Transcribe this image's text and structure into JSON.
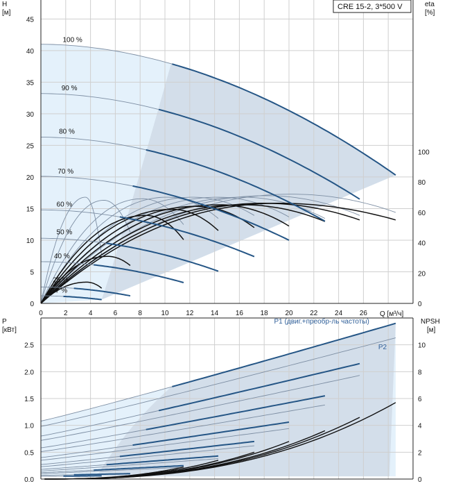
{
  "legend_box": {
    "text": "CRE 15-2, 3*500 V"
  },
  "colors": {
    "grid": "#cfcfcf",
    "frame": "#222222",
    "area_light": "#e4f1fb",
    "area_dark": "#d3deea",
    "curve_dark": "#245585",
    "curve_thin": "#7d8ea3",
    "black": "#111111",
    "label_blue": "#2f5f99"
  },
  "chart_data": [
    {
      "type": "line",
      "name": "H-Q",
      "ylabel_top": "H",
      "ylabel_unit": "[м]",
      "y2label_top": "eta",
      "y2label_unit": "[%]",
      "xlabel": "Q [м³/ч]",
      "xlim": [
        0,
        30
      ],
      "ylim": [
        0,
        48
      ],
      "y2lim": [
        0,
        200
      ],
      "x_ticks": [
        0,
        2,
        4,
        6,
        8,
        10,
        12,
        14,
        16,
        18,
        20,
        22,
        24,
        26
      ],
      "y_ticks": [
        0,
        5,
        10,
        15,
        20,
        25,
        30,
        35,
        40,
        45
      ],
      "y2_ticks": [
        0,
        20,
        40,
        60,
        80,
        100
      ],
      "speed_labels": [
        {
          "text": "100 %",
          "q": 1.2,
          "h": 41
        },
        {
          "text": "90 %",
          "q": 1.1,
          "h": 33.4
        },
        {
          "text": "80 %",
          "q": 0.9,
          "h": 26.5
        },
        {
          "text": "70 %",
          "q": 0.8,
          "h": 20.2
        },
        {
          "text": "60 %",
          "q": 0.7,
          "h": 15.0
        },
        {
          "text": "50 %",
          "q": 0.7,
          "h": 10.6
        },
        {
          "text": "40 %",
          "q": 0.5,
          "h": 6.8
        },
        {
          "text": "25 %",
          "q": 0.4,
          "h": 3.0
        },
        {
          "text": "17 %",
          "q": 0.3,
          "h": 1.4
        }
      ],
      "speed_curves": [
        {
          "h0": 41,
          "qmax": 28.6,
          "hend": 20.3
        },
        {
          "h0": 33.2,
          "qmax": 25.7,
          "hend": 16.5
        },
        {
          "h0": 26.3,
          "qmax": 22.9,
          "hend": 13.0
        },
        {
          "h0": 20.1,
          "qmax": 20.0,
          "hend": 10.0
        },
        {
          "h0": 14.8,
          "qmax": 17.2,
          "hend": 7.4
        },
        {
          "h0": 10.3,
          "qmax": 14.3,
          "hend": 5.1
        },
        {
          "h0": 6.6,
          "qmax": 11.5,
          "hend": 3.3
        },
        {
          "h0": 2.6,
          "qmax": 7.2,
          "hend": 1.2
        },
        {
          "h0": 1.2,
          "qmax": 4.9,
          "hend": 0.6
        }
      ],
      "eta_curves": [
        {
          "qmax": 28.6,
          "peak_q": 20.3,
          "peak": 72,
          "end": 60
        },
        {
          "qmax": 25.7,
          "peak_q": 18.2,
          "peak": 71,
          "end": 58
        },
        {
          "qmax": 22.9,
          "peak_q": 16.3,
          "peak": 70,
          "end": 56
        },
        {
          "qmax": 20.0,
          "peak_q": 14.3,
          "peak": 70,
          "end": 57
        },
        {
          "qmax": 17.2,
          "peak_q": 12.3,
          "peak": 70,
          "end": 58
        },
        {
          "qmax": 14.3,
          "peak_q": 10.2,
          "peak": 70,
          "end": 56
        },
        {
          "qmax": 11.5,
          "peak_q": 8.2,
          "peak": 69,
          "end": 52
        },
        {
          "qmax": 7.2,
          "peak_q": 5.1,
          "peak": 68,
          "end": 47
        },
        {
          "qmax": 4.9,
          "peak_q": 3.6,
          "peak": 70,
          "end": 32
        }
      ],
      "black_eta_curves": [
        {
          "qmax": 28.6,
          "peak_q": 19.2,
          "peak": 66,
          "end": 55
        },
        {
          "qmax": 25.7,
          "peak_q": 18.0,
          "peak": 66,
          "end": 55
        },
        {
          "qmax": 22.9,
          "peak_q": 16.3,
          "peak": 65,
          "end": 54
        },
        {
          "qmax": 20.0,
          "peak_q": 14.4,
          "peak": 65,
          "end": 51
        },
        {
          "qmax": 17.2,
          "peak_q": 12.6,
          "peak": 64,
          "end": 50
        },
        {
          "qmax": 14.3,
          "peak_q": 10.6,
          "peak": 62,
          "end": 48
        },
        {
          "qmax": 11.5,
          "peak_q": 8.5,
          "peak": 58,
          "end": 42
        },
        {
          "qmax": 7.2,
          "peak_q": 5.4,
          "peak": 31,
          "end": 25
        },
        {
          "qmax": 4.9,
          "peak_q": 3.7,
          "peak": 14,
          "end": 10
        }
      ]
    },
    {
      "type": "line",
      "name": "P-Q",
      "ylabel_top": "P",
      "ylabel_unit": "[кВт]",
      "y2label_top": "NPSH",
      "y2label_unit": "[м]",
      "xlim": [
        0,
        30
      ],
      "ylim": [
        0,
        3.0
      ],
      "y2lim": [
        0,
        12
      ],
      "y_ticks": [
        0.0,
        0.5,
        1.0,
        1.5,
        2.0,
        2.5
      ],
      "y_tick_labels": [
        "0.0",
        "0.5",
        "1.0",
        "1.5",
        "2.0",
        "2.5"
      ],
      "y2_ticks": [
        0,
        2,
        4,
        6,
        8,
        10
      ],
      "series_labels": [
        {
          "text": "P1 (двиг.+преобр-ль частоты)",
          "q": 18.8,
          "p": 2.95
        },
        {
          "text": "P2",
          "q": 27.2,
          "p": 2.47
        }
      ],
      "p1_curves": [
        {
          "qmax": 28.6,
          "p0": 1.08,
          "pend": 2.9
        },
        {
          "qmax": 25.7,
          "p0": 0.8,
          "pend": 2.15
        },
        {
          "qmax": 22.9,
          "p0": 0.58,
          "pend": 1.55
        },
        {
          "qmax": 20.0,
          "p0": 0.4,
          "pend": 1.06
        },
        {
          "qmax": 17.2,
          "p0": 0.27,
          "pend": 0.7
        },
        {
          "qmax": 14.3,
          "p0": 0.18,
          "pend": 0.43
        },
        {
          "qmax": 11.5,
          "p0": 0.12,
          "pend": 0.25
        },
        {
          "qmax": 7.2,
          "p0": 0.07,
          "pend": 0.1
        },
        {
          "qmax": 4.9,
          "p0": 0.05,
          "pend": 0.06
        }
      ],
      "p2_curves": [
        {
          "qmax": 28.6,
          "p0": 0.98,
          "pend": 2.63
        },
        {
          "qmax": 25.7,
          "p0": 0.72,
          "pend": 1.93
        },
        {
          "qmax": 22.9,
          "p0": 0.51,
          "pend": 1.38
        },
        {
          "qmax": 20.0,
          "p0": 0.35,
          "pend": 0.94
        },
        {
          "qmax": 17.2,
          "p0": 0.23,
          "pend": 0.62
        },
        {
          "qmax": 14.3,
          "p0": 0.15,
          "pend": 0.38
        },
        {
          "qmax": 11.5,
          "p0": 0.1,
          "pend": 0.22
        }
      ],
      "npsh_curves": [
        {
          "qmax": 28.6,
          "end": 5.7
        },
        {
          "qmax": 25.7,
          "end": 4.6
        },
        {
          "qmax": 22.9,
          "end": 3.6
        },
        {
          "qmax": 20.0,
          "end": 2.8
        },
        {
          "qmax": 17.2,
          "end": 2.0
        },
        {
          "qmax": 14.3,
          "end": 1.4
        },
        {
          "qmax": 11.5,
          "end": 0.9
        }
      ]
    }
  ]
}
